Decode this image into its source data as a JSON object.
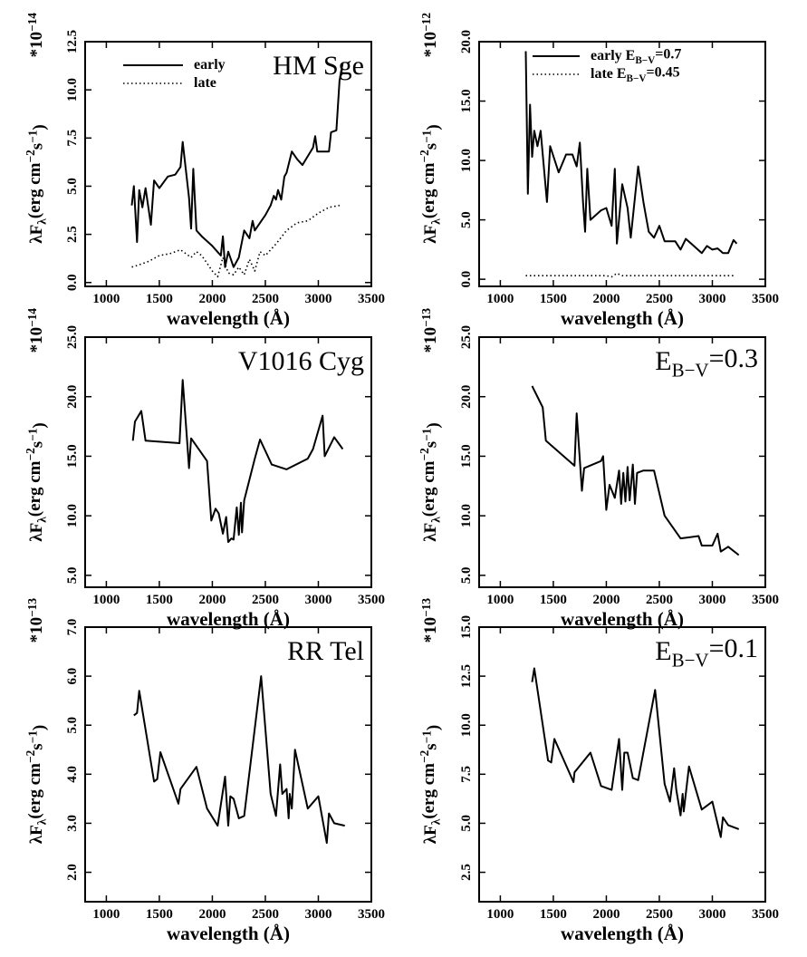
{
  "chart_data": [
    {
      "type": "line",
      "annotation": [
        {
          "text": "HM Sge"
        }
      ],
      "legend": "top-left",
      "xlabel": "wavelength (Å)",
      "ylabel": [
        {
          "text": "λF"
        },
        {
          "text": "λ",
          "sub": true
        },
        {
          "text": "(erg cm"
        },
        {
          "text": "−2",
          "sup": true
        },
        {
          "text": "s"
        },
        {
          "text": "−1",
          "sup": true
        },
        {
          "text": ")"
        }
      ],
      "yscale": [
        {
          "text": "*10"
        },
        {
          "text": "−14",
          "sup": true
        }
      ],
      "xlim": [
        800,
        3500
      ],
      "xticks": [
        1000,
        1500,
        2000,
        2500,
        3000,
        3500
      ],
      "ylim": [
        -0.2,
        12.5
      ],
      "yticks": [
        {
          "value": 0,
          "label": "0.0"
        },
        2.5,
        {
          "value": 5,
          "label": "5.0"
        },
        7.5,
        {
          "value": 10,
          "label": "10.0"
        },
        12.5
      ],
      "series": [
        {
          "name": [
            {
              "text": "early"
            }
          ],
          "color": "#000",
          "style": "solid",
          "x": [
            1240,
            1260,
            1290,
            1310,
            1340,
            1370,
            1420,
            1450,
            1500,
            1580,
            1650,
            1700,
            1720,
            1780,
            1800,
            1820,
            1850,
            1900,
            2000,
            2080,
            2100,
            2120,
            2150,
            2200,
            2250,
            2300,
            2350,
            2380,
            2400,
            2500,
            2550,
            2580,
            2600,
            2620,
            2650,
            2680,
            2700,
            2750,
            2800,
            2850,
            2950,
            2970,
            2990,
            3100,
            3120,
            3170,
            3200,
            3230
          ],
          "values": [
            4.0,
            5.0,
            2.1,
            4.8,
            3.9,
            4.9,
            3.0,
            5.3,
            4.9,
            5.5,
            5.6,
            6.0,
            7.3,
            4.4,
            2.8,
            5.9,
            2.7,
            2.4,
            1.9,
            1.4,
            2.4,
            0.8,
            1.6,
            0.8,
            1.3,
            2.7,
            2.3,
            3.2,
            2.7,
            3.5,
            4.0,
            4.5,
            4.3,
            4.8,
            4.3,
            5.5,
            5.7,
            6.8,
            6.4,
            6.1,
            7.0,
            7.6,
            6.8,
            6.8,
            7.8,
            7.9,
            10.5,
            11.4
          ]
        },
        {
          "name": [
            {
              "text": "late"
            }
          ],
          "color": "#000",
          "style": "dotted",
          "x": [
            1240,
            1300,
            1400,
            1500,
            1600,
            1700,
            1800,
            1850,
            1900,
            1950,
            2000,
            2050,
            2100,
            2150,
            2200,
            2250,
            2300,
            2350,
            2400,
            2450,
            2500,
            2600,
            2700,
            2800,
            2900,
            3000,
            3100,
            3200
          ],
          "values": [
            0.8,
            0.9,
            1.1,
            1.4,
            1.5,
            1.7,
            1.3,
            1.6,
            1.4,
            1.0,
            0.6,
            0.3,
            1.3,
            0.5,
            0.4,
            0.8,
            0.4,
            1.2,
            0.6,
            1.6,
            1.4,
            2.0,
            2.7,
            3.1,
            3.2,
            3.6,
            3.9,
            4.0
          ]
        }
      ]
    },
    {
      "type": "line",
      "legend": "top",
      "xlabel": "wavelength (Å)",
      "ylabel": [
        {
          "text": "λF"
        },
        {
          "text": "λ",
          "sub": true
        },
        {
          "text": "(erg cm"
        },
        {
          "text": "−2",
          "sup": true
        },
        {
          "text": "s"
        },
        {
          "text": "−1",
          "sup": true
        },
        {
          "text": ")"
        }
      ],
      "yscale": [
        {
          "text": "*10"
        },
        {
          "text": "−12",
          "sup": true
        }
      ],
      "xlim": [
        800,
        3500
      ],
      "xticks": [
        1000,
        1500,
        2000,
        2500,
        3000,
        3500
      ],
      "ylim": [
        -0.6,
        20.0
      ],
      "yticks": [
        {
          "value": 0,
          "label": "0.0"
        },
        {
          "value": 5,
          "label": "5.0"
        },
        {
          "value": 10,
          "label": "10.0"
        },
        {
          "value": 15,
          "label": "15.0"
        },
        {
          "value": 20,
          "label": "20.0"
        }
      ],
      "series": [
        {
          "name": [
            {
              "text": "early E"
            },
            {
              "text": "B−V",
              "sub": true
            },
            {
              "text": "=0.7"
            }
          ],
          "color": "#000",
          "style": "solid",
          "x": [
            1240,
            1260,
            1280,
            1300,
            1320,
            1350,
            1380,
            1440,
            1470,
            1550,
            1620,
            1680,
            1720,
            1750,
            1780,
            1800,
            1820,
            1850,
            1950,
            2000,
            2050,
            2080,
            2100,
            2150,
            2200,
            2230,
            2300,
            2350,
            2370,
            2400,
            2450,
            2500,
            2550,
            2650,
            2700,
            2750,
            2800,
            2900,
            2950,
            3000,
            3050,
            3100,
            3150,
            3200,
            3230
          ],
          "values": [
            19.2,
            7.2,
            14.7,
            10.3,
            12.5,
            11.2,
            12.5,
            6.5,
            11.2,
            9.0,
            10.5,
            10.5,
            9.5,
            11.5,
            6.5,
            4.0,
            9.3,
            5.0,
            5.8,
            6.0,
            4.5,
            9.3,
            3.0,
            8.0,
            6.0,
            3.5,
            9.5,
            6.5,
            5.5,
            4.0,
            3.5,
            4.5,
            3.2,
            3.2,
            2.5,
            3.4,
            3.0,
            2.2,
            2.8,
            2.5,
            2.6,
            2.2,
            2.2,
            3.3,
            3.0
          ]
        },
        {
          "name": [
            {
              "text": "late  E"
            },
            {
              "text": "B−V",
              "sub": true
            },
            {
              "text": "=0.45"
            }
          ],
          "color": "#000",
          "style": "dotted",
          "x": [
            1240,
            1500,
            1800,
            2000,
            2050,
            2100,
            2150,
            2400,
            2800,
            3200
          ],
          "values": [
            0.3,
            0.3,
            0.3,
            0.3,
            0.2,
            0.5,
            0.3,
            0.3,
            0.3,
            0.3
          ]
        }
      ]
    },
    {
      "type": "line",
      "annotation": [
        {
          "text": "V1016 Cyg"
        }
      ],
      "xlabel": "wavelength (Å)",
      "ylabel": [
        {
          "text": "λF"
        },
        {
          "text": "λ",
          "sub": true
        },
        {
          "text": "(erg cm"
        },
        {
          "text": "−2",
          "sup": true
        },
        {
          "text": "s"
        },
        {
          "text": "−1",
          "sup": true
        },
        {
          "text": ")"
        }
      ],
      "yscale": [
        {
          "text": "*10"
        },
        {
          "text": "−14",
          "sup": true
        }
      ],
      "xlim": [
        800,
        3500
      ],
      "xticks": [
        1000,
        1500,
        2000,
        2500,
        3000,
        3500
      ],
      "ylim": [
        4.0,
        25.0
      ],
      "yticks": [
        {
          "value": 5,
          "label": "5.0"
        },
        {
          "value": 10,
          "label": "10.0"
        },
        {
          "value": 15,
          "label": "15.0"
        },
        {
          "value": 20,
          "label": "20.0"
        },
        {
          "value": 25,
          "label": "25.0"
        }
      ],
      "series": [
        {
          "color": "#000",
          "style": "solid",
          "x": [
            1250,
            1270,
            1330,
            1370,
            1690,
            1720,
            1760,
            1780,
            1800,
            1950,
            1990,
            2030,
            2060,
            2100,
            2130,
            2150,
            2180,
            2200,
            2230,
            2250,
            2270,
            2280,
            2300,
            2400,
            2450,
            2560,
            2700,
            2900,
            2950,
            3040,
            3060,
            3150,
            3230
          ],
          "values": [
            16.3,
            17.9,
            18.8,
            16.3,
            16.1,
            21.4,
            16.5,
            14.0,
            16.5,
            14.6,
            9.6,
            10.6,
            10.2,
            8.5,
            9.9,
            7.8,
            8.1,
            8.0,
            10.7,
            8.4,
            11.1,
            8.6,
            11.3,
            14.8,
            16.4,
            14.3,
            13.9,
            14.8,
            15.6,
            18.4,
            15.0,
            16.6,
            15.6
          ]
        }
      ]
    },
    {
      "type": "line",
      "annotation": [
        {
          "text": "E"
        },
        {
          "text": "B−V",
          "sub": true
        },
        {
          "text": "=0.3"
        }
      ],
      "xlabel": "wavelength (Å)",
      "ylabel": [
        {
          "text": "λF"
        },
        {
          "text": "λ",
          "sub": true
        },
        {
          "text": "(erg cm"
        },
        {
          "text": "−2",
          "sup": true
        },
        {
          "text": "s"
        },
        {
          "text": "−1",
          "sup": true
        },
        {
          "text": ")"
        }
      ],
      "yscale": [
        {
          "text": "*10"
        },
        {
          "text": "−13",
          "sup": true
        }
      ],
      "xlim": [
        800,
        3500
      ],
      "xticks": [
        1000,
        1500,
        2000,
        2500,
        3000,
        3500
      ],
      "ylim": [
        4.0,
        25.0
      ],
      "yticks": [
        {
          "value": 5,
          "label": "5.0"
        },
        {
          "value": 10,
          "label": "10.0"
        },
        {
          "value": 15,
          "label": "15.0"
        },
        {
          "value": 20,
          "label": "20.0"
        },
        {
          "value": 25,
          "label": "25.0"
        }
      ],
      "series": [
        {
          "color": "#000",
          "style": "solid",
          "x": [
            1300,
            1400,
            1430,
            1700,
            1720,
            1770,
            1790,
            1950,
            1970,
            2000,
            2030,
            2080,
            2120,
            2140,
            2160,
            2180,
            2200,
            2220,
            2250,
            2270,
            2290,
            2350,
            2450,
            2550,
            2700,
            2870,
            2900,
            3000,
            3050,
            3080,
            3150,
            3250
          ],
          "values": [
            20.9,
            19.1,
            16.3,
            14.2,
            18.6,
            12.1,
            14.0,
            14.6,
            15.0,
            10.5,
            12.6,
            11.5,
            13.8,
            11.0,
            13.6,
            11.2,
            14.1,
            11.3,
            14.3,
            11.0,
            13.6,
            13.8,
            13.8,
            10.0,
            8.1,
            8.3,
            7.5,
            7.5,
            8.5,
            7.0,
            7.4,
            6.7
          ]
        }
      ]
    },
    {
      "type": "line",
      "annotation": [
        {
          "text": "RR Tel"
        }
      ],
      "xlabel": "wavelength (Å)",
      "ylabel": [
        {
          "text": "λF"
        },
        {
          "text": "λ",
          "sub": true
        },
        {
          "text": "(erg cm"
        },
        {
          "text": "−2",
          "sup": true
        },
        {
          "text": "s"
        },
        {
          "text": "−1",
          "sup": true
        },
        {
          "text": ")"
        }
      ],
      "yscale": [
        {
          "text": "*10"
        },
        {
          "text": "−13",
          "sup": true
        }
      ],
      "xlim": [
        800,
        3500
      ],
      "xticks": [
        1000,
        1500,
        2000,
        2500,
        3000,
        3500
      ],
      "ylim": [
        1.4,
        7.0
      ],
      "yticks": [
        {
          "value": 2,
          "label": "2.0"
        },
        {
          "value": 3,
          "label": "3.0"
        },
        {
          "value": 4,
          "label": "4.0"
        },
        {
          "value": 5,
          "label": "5.0"
        },
        {
          "value": 6,
          "label": "6.0"
        },
        {
          "value": 7,
          "label": "7.0"
        }
      ],
      "series": [
        {
          "color": "#000",
          "style": "solid",
          "x": [
            1260,
            1290,
            1310,
            1450,
            1480,
            1510,
            1680,
            1700,
            1850,
            1950,
            2050,
            2120,
            2150,
            2170,
            2200,
            2250,
            2300,
            2460,
            2550,
            2600,
            2640,
            2660,
            2700,
            2720,
            2730,
            2750,
            2780,
            2900,
            3000,
            3080,
            3100,
            3150,
            3250
          ],
          "values": [
            5.2,
            5.25,
            5.7,
            3.85,
            3.9,
            4.45,
            3.4,
            3.7,
            4.15,
            3.3,
            2.95,
            3.95,
            2.95,
            3.55,
            3.5,
            3.1,
            3.15,
            6.0,
            3.6,
            3.15,
            4.2,
            3.6,
            3.7,
            3.1,
            3.6,
            3.3,
            4.5,
            3.3,
            3.55,
            2.6,
            3.2,
            3.0,
            2.95
          ]
        }
      ]
    },
    {
      "type": "line",
      "annotation": [
        {
          "text": "E"
        },
        {
          "text": "B−V",
          "sub": true
        },
        {
          "text": "=0.1"
        }
      ],
      "xlabel": "wavelength (Å)",
      "ylabel": [
        {
          "text": "λF"
        },
        {
          "text": "λ",
          "sub": true
        },
        {
          "text": "(erg cm"
        },
        {
          "text": "−2",
          "sup": true
        },
        {
          "text": "s"
        },
        {
          "text": "−1",
          "sup": true
        },
        {
          "text": ")"
        }
      ],
      "yscale": [
        {
          "text": "*10"
        },
        {
          "text": "−13",
          "sup": true
        }
      ],
      "xlim": [
        800,
        3500
      ],
      "xticks": [
        1000,
        1500,
        2000,
        2500,
        3000,
        3500
      ],
      "ylim": [
        1.0,
        15.0
      ],
      "yticks": [
        2.5,
        {
          "value": 5,
          "label": "5.0"
        },
        7.5,
        {
          "value": 10,
          "label": "10.0"
        },
        12.5,
        {
          "value": 15,
          "label": "15.0"
        }
      ],
      "series": [
        {
          "color": "#000",
          "style": "solid",
          "x": [
            1300,
            1320,
            1450,
            1480,
            1510,
            1690,
            1700,
            1850,
            1950,
            2050,
            2120,
            2150,
            2170,
            2200,
            2250,
            2300,
            2460,
            2550,
            2600,
            2640,
            2660,
            2700,
            2720,
            2730,
            2780,
            2900,
            3000,
            3080,
            3100,
            3150,
            3250
          ],
          "values": [
            12.2,
            12.9,
            8.2,
            8.1,
            9.3,
            7.1,
            7.6,
            8.6,
            6.9,
            6.7,
            9.3,
            6.7,
            8.6,
            8.6,
            7.3,
            7.2,
            11.8,
            7.0,
            6.1,
            7.8,
            6.7,
            5.4,
            6.5,
            5.6,
            7.9,
            5.7,
            6.1,
            4.3,
            5.3,
            4.9,
            4.7
          ]
        }
      ]
    }
  ]
}
